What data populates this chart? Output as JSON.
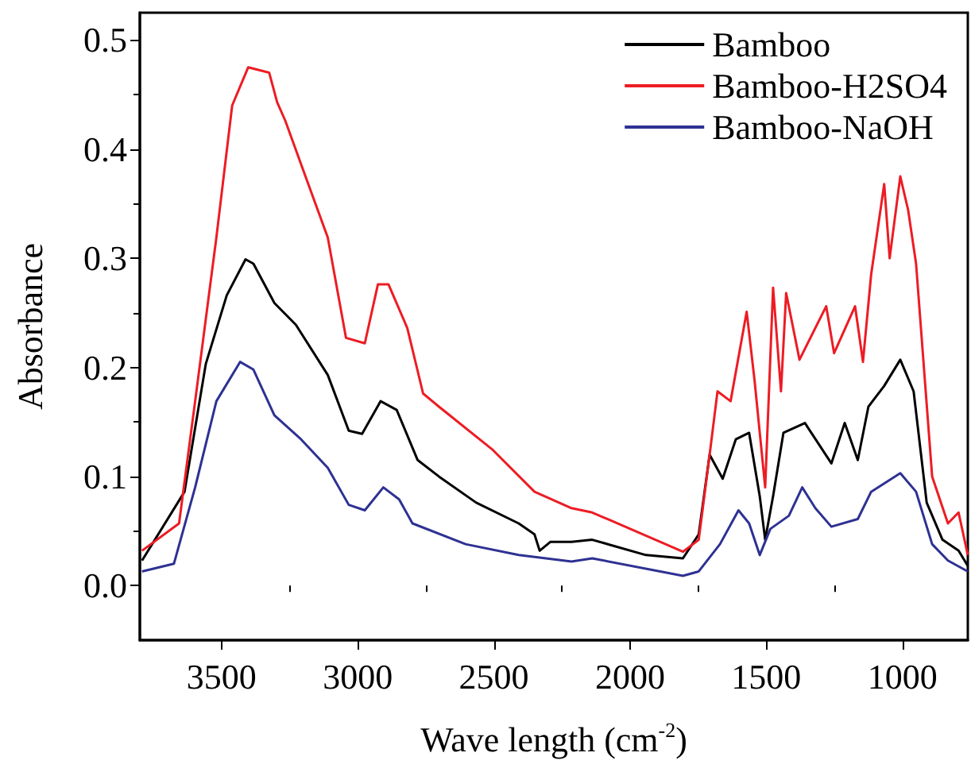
{
  "chart_data": {
    "type": "line",
    "xlabel": "Wave length (cm$^{-2}$)",
    "ylabel": "Absorbance",
    "xlim": [
      3800,
      760
    ],
    "xticks": [
      3500,
      3000,
      2500,
      2000,
      1500,
      1000
    ],
    "ylim": [
      -0.05,
      0.525
    ],
    "yticks": [
      {
        "value": 0,
        "label": "0.0"
      },
      0.1,
      0.2,
      0.3,
      0.4,
      0.5
    ],
    "legend": "top right",
    "grid": false,
    "marker": "none",
    "line_style": "solid",
    "series": [
      {
        "name": "Bamboo",
        "color": "#000000",
        "x": [
          3792,
          3636,
          3558,
          3481,
          3412,
          3383,
          3306,
          3227,
          3110,
          3033,
          2984,
          2916,
          2857,
          2780,
          2702,
          2565,
          2409,
          2351,
          2332,
          2293,
          2215,
          2139,
          1942,
          1806,
          1748,
          1708,
          1660,
          1612,
          1563,
          1524,
          1504,
          1475,
          1437,
          1358,
          1261,
          1212,
          1164,
          1125,
          1067,
          1008,
          959,
          911,
          853,
          794,
          760
        ],
        "values": [
          0.023,
          0.086,
          0.203,
          0.266,
          0.299,
          0.295,
          0.259,
          0.239,
          0.193,
          0.142,
          0.139,
          0.169,
          0.161,
          0.115,
          0.1,
          0.076,
          0.057,
          0.047,
          0.032,
          0.04,
          0.04,
          0.042,
          0.028,
          0.025,
          0.047,
          0.12,
          0.098,
          0.134,
          0.14,
          0.082,
          0.042,
          0.082,
          0.14,
          0.149,
          0.112,
          0.149,
          0.115,
          0.164,
          0.183,
          0.207,
          0.178,
          0.076,
          0.042,
          0.032,
          0.018
        ]
      },
      {
        "name": "Bamboo-H2SO4",
        "color": "#ed1c24",
        "x": [
          3792,
          3656,
          3597,
          3519,
          3461,
          3402,
          3325,
          3296,
          3266,
          3189,
          3110,
          3043,
          2974,
          2926,
          2887,
          2818,
          2760,
          2702,
          2507,
          2351,
          2215,
          2139,
          1806,
          1748,
          1708,
          1679,
          1631,
          1572,
          1543,
          1504,
          1475,
          1446,
          1427,
          1378,
          1280,
          1251,
          1174,
          1145,
          1115,
          1067,
          1047,
          1008,
          979,
          950,
          891,
          833,
          794,
          760
        ],
        "values": [
          0.032,
          0.057,
          0.169,
          0.319,
          0.44,
          0.475,
          0.47,
          0.443,
          0.426,
          0.373,
          0.319,
          0.227,
          0.222,
          0.276,
          0.276,
          0.236,
          0.176,
          0.164,
          0.125,
          0.086,
          0.071,
          0.067,
          0.031,
          0.042,
          0.12,
          0.178,
          0.169,
          0.251,
          0.188,
          0.09,
          0.273,
          0.178,
          0.268,
          0.207,
          0.256,
          0.213,
          0.256,
          0.205,
          0.285,
          0.368,
          0.3,
          0.375,
          0.344,
          0.295,
          0.1,
          0.057,
          0.067,
          0.028
        ]
      },
      {
        "name": "Bamboo-NaOH",
        "color": "#2e3192",
        "x": [
          3792,
          3675,
          3597,
          3519,
          3432,
          3383,
          3306,
          3208,
          3110,
          3033,
          2974,
          2906,
          2848,
          2799,
          2604,
          2409,
          2215,
          2139,
          1806,
          1748,
          1670,
          1602,
          1563,
          1524,
          1485,
          1417,
          1368,
          1320,
          1261,
          1164,
          1115,
          1008,
          950,
          891,
          833,
          760
        ],
        "values": [
          0.013,
          0.02,
          0.09,
          0.169,
          0.205,
          0.198,
          0.156,
          0.134,
          0.108,
          0.074,
          0.069,
          0.09,
          0.079,
          0.057,
          0.038,
          0.028,
          0.022,
          0.025,
          0.009,
          0.013,
          0.038,
          0.069,
          0.057,
          0.028,
          0.052,
          0.064,
          0.09,
          0.071,
          0.054,
          0.061,
          0.086,
          0.103,
          0.086,
          0.038,
          0.023,
          0.013
        ]
      }
    ]
  }
}
